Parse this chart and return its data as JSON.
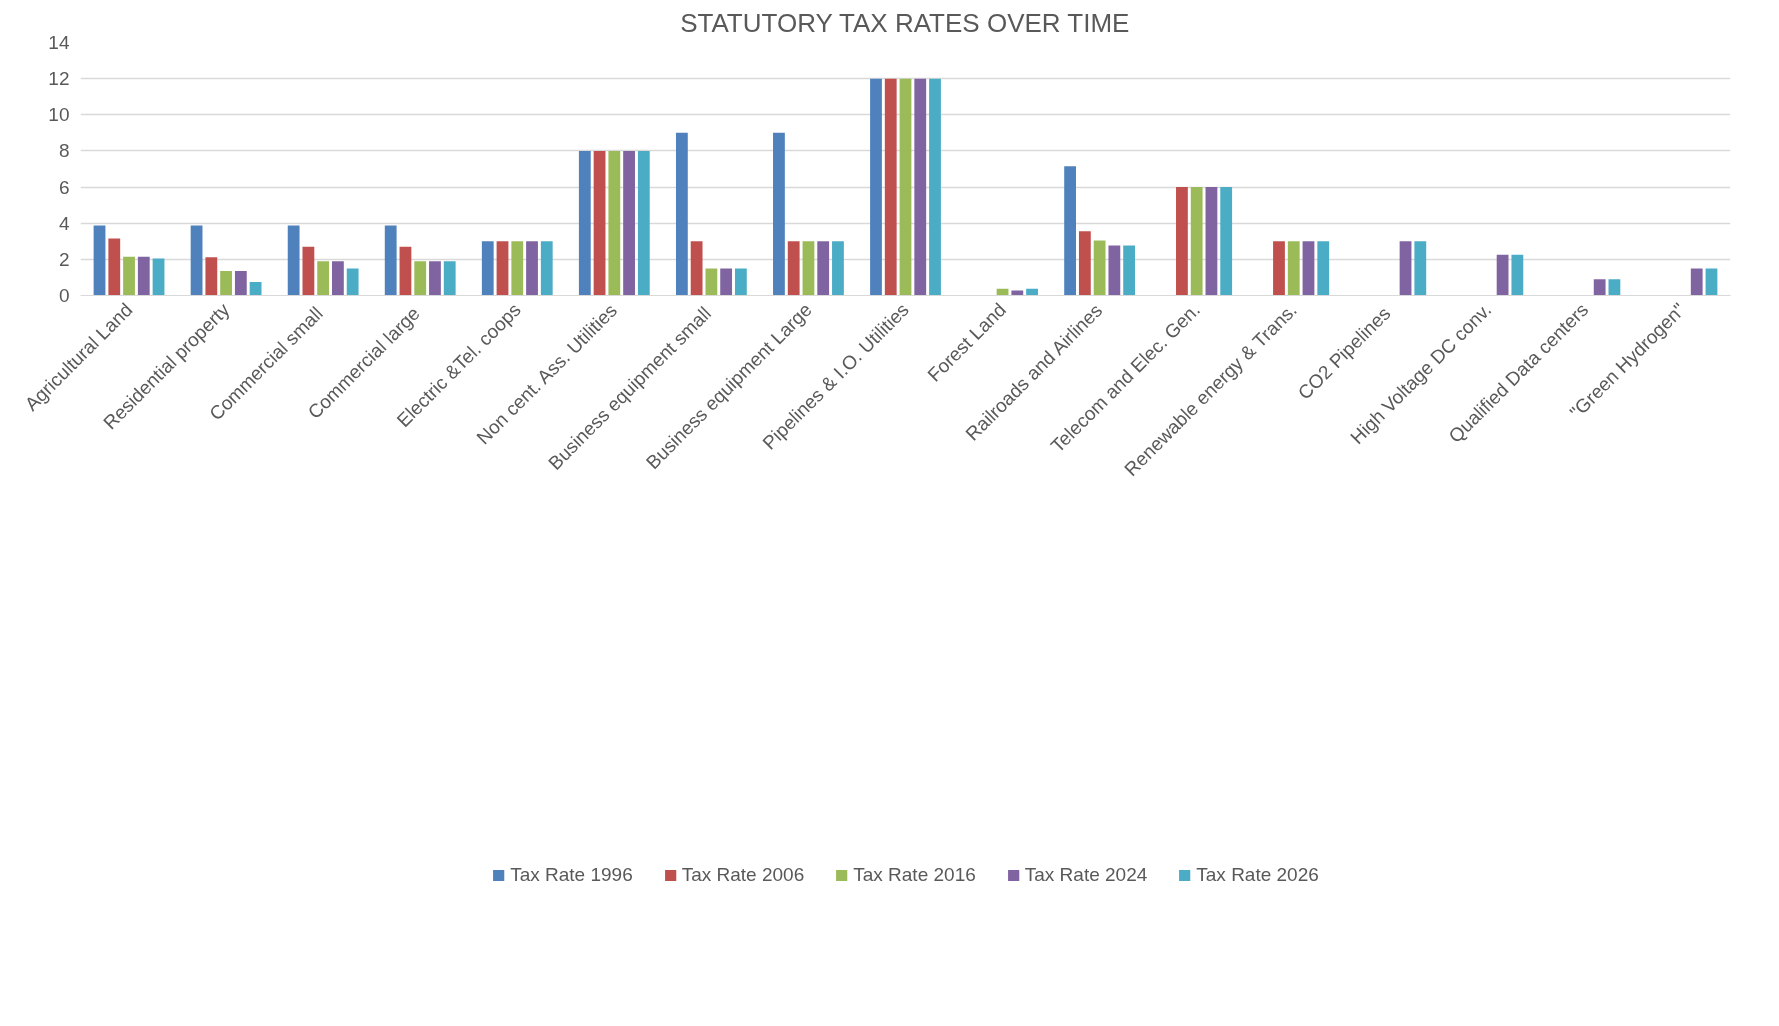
{
  "chart_data": {
    "type": "bar",
    "title": "STATUTORY TAX RATES OVER TIME",
    "categories": [
      "Agricultural Land",
      "Residential property",
      "Commercial  small",
      "Commercial  large",
      "Electric &Tel. coops",
      "Non cent. Ass. Utilities",
      "Business equipment  small",
      "Business equipment Large",
      "Pipelines & I.O. Utilities",
      "Forest Land",
      "Railroads and Airlines",
      "Telecom and Elec. Gen.",
      "Renewable energy & Trans.",
      "CO2  Pipelines",
      "High Voltage DC conv.",
      "Qualified Data centers",
      "\"Green Hydrogen\""
    ],
    "series": [
      {
        "name": "Tax Rate 1996",
        "color": "#4f81bd",
        "values": [
          3.87,
          3.87,
          3.87,
          3.87,
          3,
          8,
          9,
          9,
          12,
          null,
          7.15,
          null,
          null,
          null,
          null,
          null,
          null
        ]
      },
      {
        "name": "Tax Rate 2006",
        "color": "#c0504d",
        "values": [
          3.15,
          2.12,
          2.7,
          2.7,
          3,
          8,
          3,
          3,
          12,
          null,
          3.55,
          6,
          3,
          null,
          null,
          null,
          null
        ]
      },
      {
        "name": "Tax Rate 2016",
        "color": "#9bbb59",
        "values": [
          2.15,
          1.35,
          1.9,
          1.9,
          3,
          8,
          1.5,
          3,
          12,
          0.37,
          3.05,
          6,
          3,
          null,
          null,
          null,
          null
        ]
      },
      {
        "name": "Tax Rate 2024",
        "color": "#8064a2",
        "values": [
          2.15,
          1.35,
          1.9,
          1.9,
          3,
          8,
          1.5,
          3,
          12,
          0.27,
          2.77,
          6,
          3,
          3,
          2.25,
          0.9,
          1.5
        ]
      },
      {
        "name": "Tax Rate 2026",
        "color": "#4bacc6",
        "values": [
          2.05,
          0.75,
          1.5,
          1.9,
          3,
          8,
          1.5,
          3,
          12,
          0.37,
          2.77,
          6,
          3,
          3,
          2.25,
          0.9,
          1.5
        ]
      }
    ],
    "ylim": [
      0,
      14
    ],
    "yticks": [
      0,
      2,
      4,
      6,
      8,
      10,
      12,
      14
    ],
    "grid": "y",
    "legend": "bottom"
  }
}
